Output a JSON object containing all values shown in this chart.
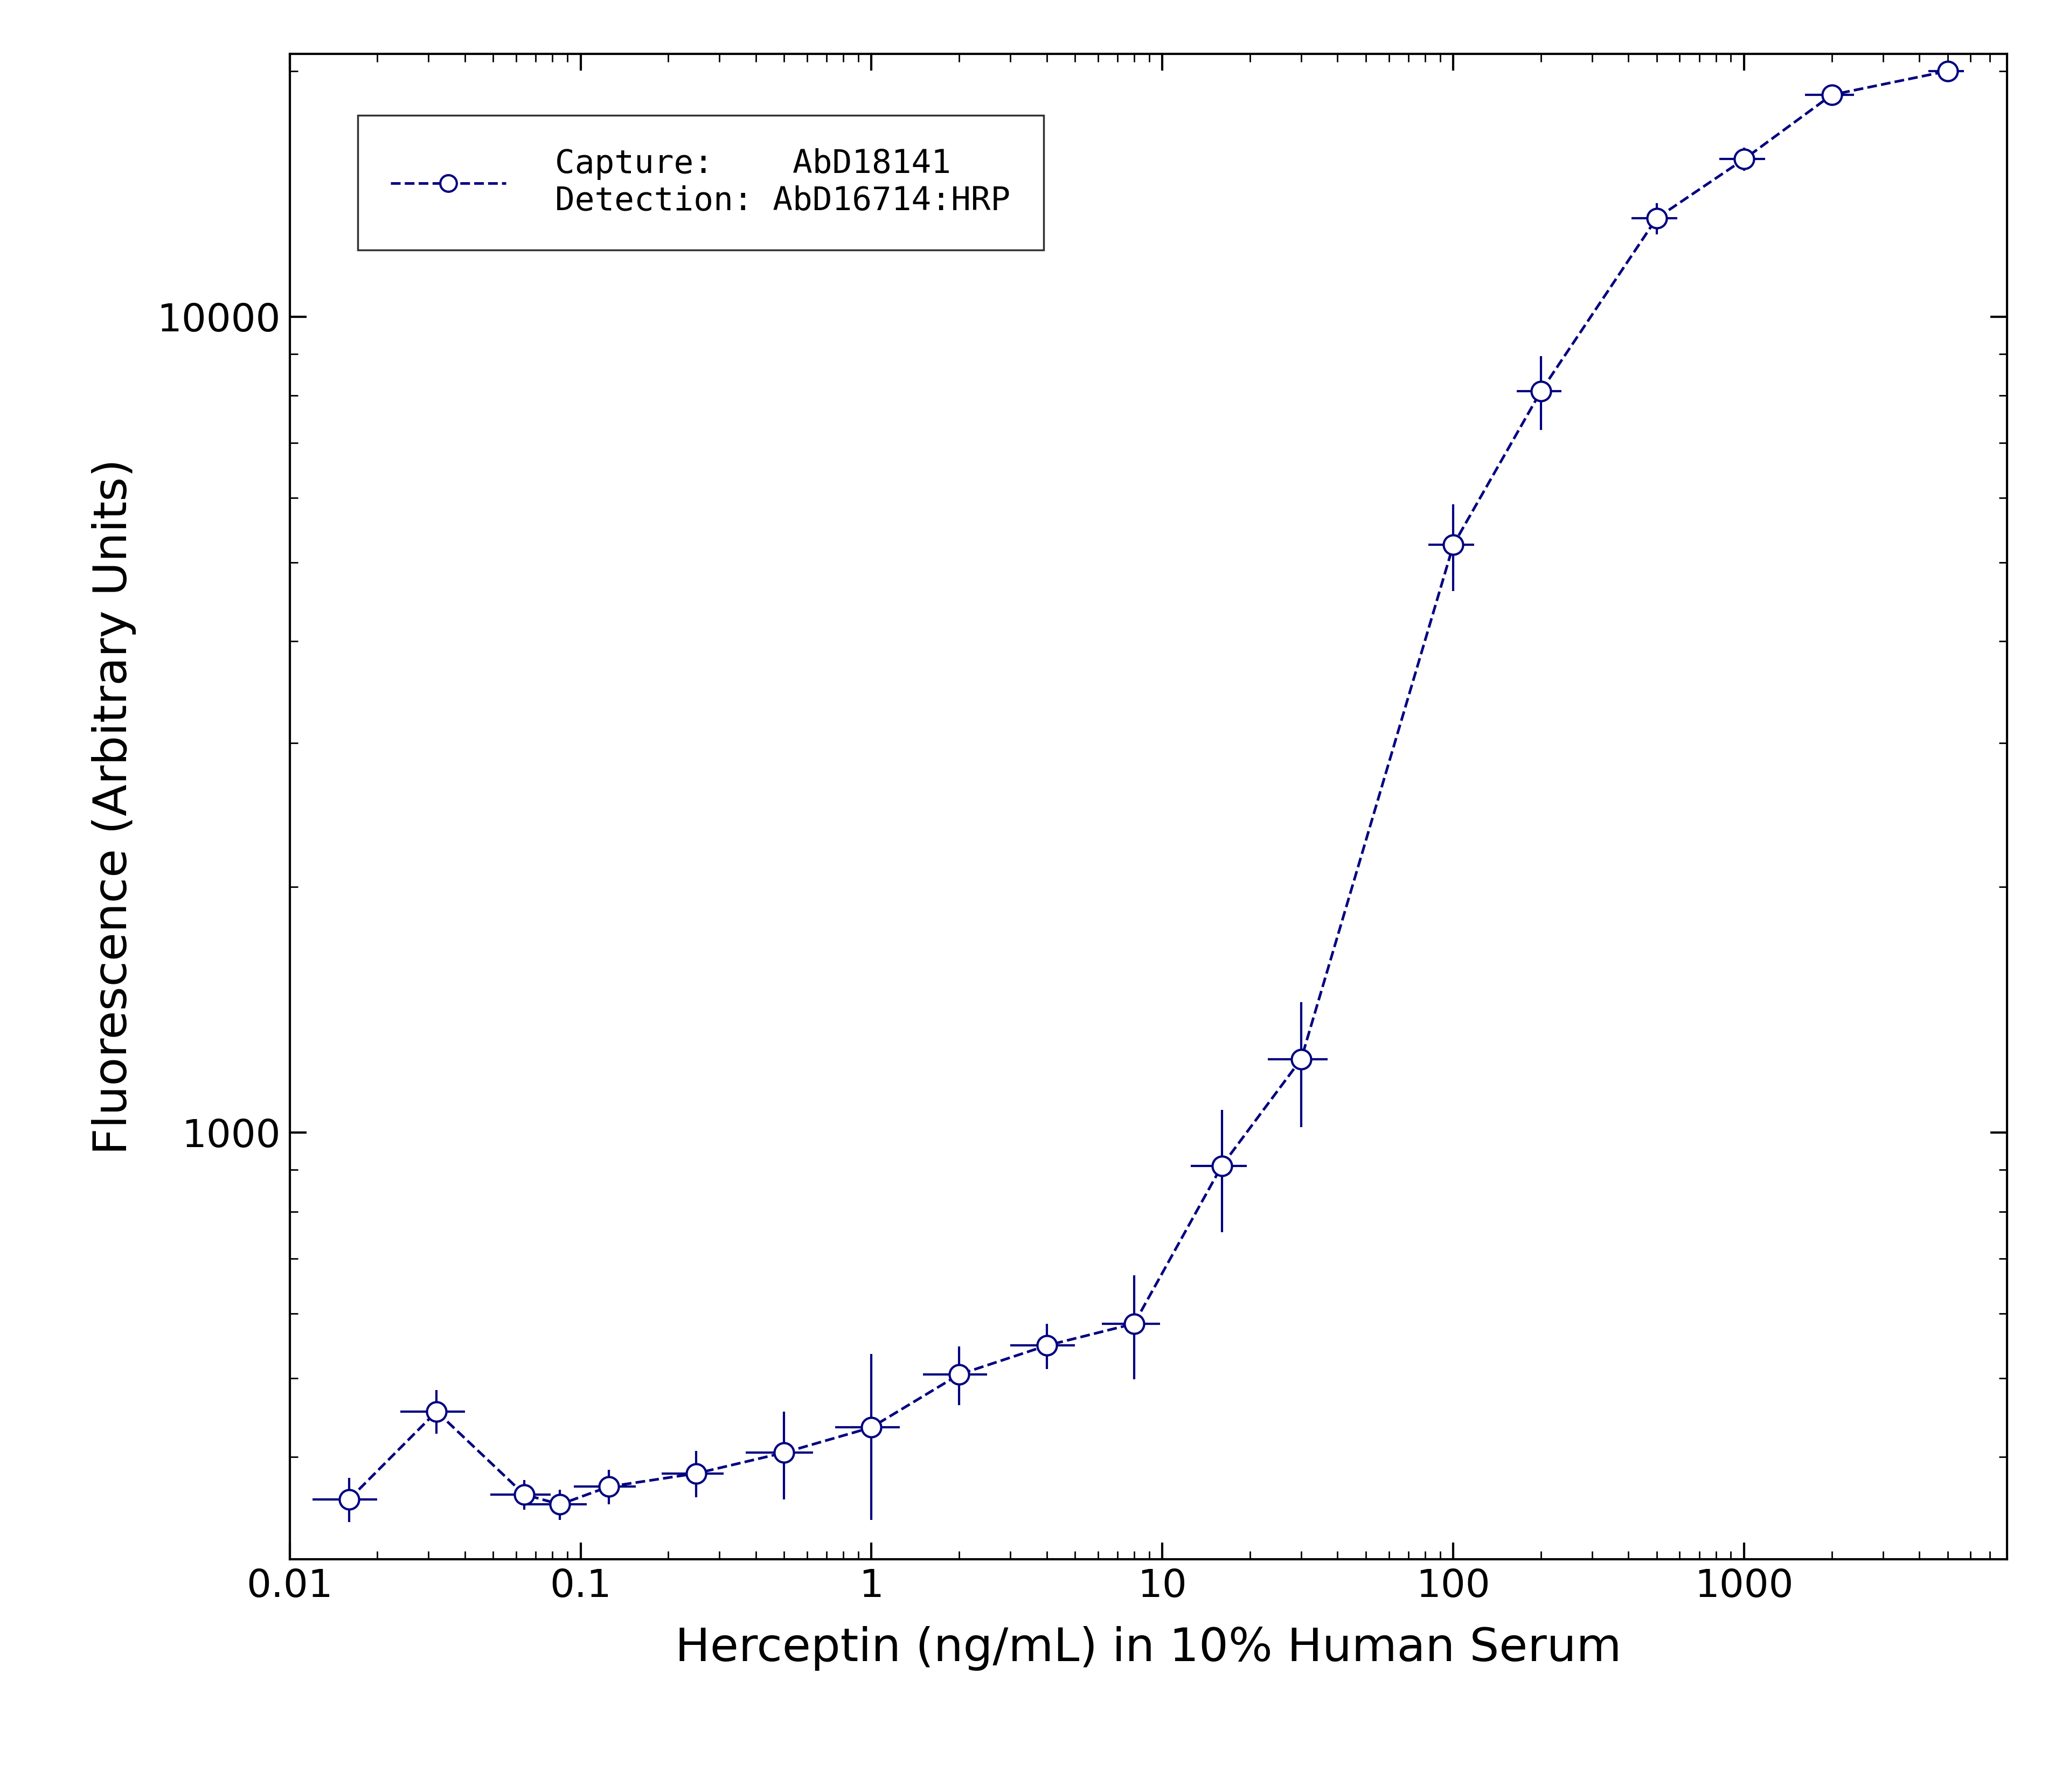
{
  "x": [
    0.016,
    0.032,
    0.064,
    0.085,
    0.125,
    0.25,
    0.5,
    1.0,
    2.0,
    4.0,
    8.0,
    16.0,
    30.0,
    100.0,
    200.0,
    500.0,
    1000.0,
    2000.0,
    5000.0
  ],
  "y": [
    355,
    455,
    360,
    350,
    368,
    382,
    405,
    435,
    505,
    548,
    583,
    910,
    1230,
    5250,
    8100,
    13200,
    15600,
    18700,
    20000
  ],
  "yerr_low": [
    22,
    28,
    15,
    15,
    18,
    25,
    50,
    100,
    42,
    35,
    85,
    155,
    215,
    640,
    840,
    580,
    510,
    370,
    170
  ],
  "yerr_high": [
    22,
    28,
    15,
    15,
    18,
    25,
    50,
    100,
    42,
    35,
    85,
    155,
    215,
    640,
    840,
    580,
    510,
    370,
    170
  ],
  "xerr": [
    0.004,
    0.008,
    0.015,
    0.02,
    0.03,
    0.06,
    0.13,
    0.25,
    0.5,
    1.0,
    1.8,
    3.5,
    7.0,
    18.0,
    35.0,
    90.0,
    180.0,
    380.0,
    700.0
  ],
  "color": "#000080",
  "linestyle": "--",
  "markerfacecolor": "#ffffff",
  "xlabel": "Herceptin (ng/mL) in 10% Human Serum",
  "ylabel": "Fluorescence (Arbitrary Units)",
  "legend_capture": "Capture:    AbD18141",
  "legend_detection": "Detection: AbD16714:HRP",
  "xlim_low": 0.01,
  "xlim_high": 8000,
  "ylim_low": 300,
  "ylim_high": 21000,
  "background_color": "#ffffff",
  "label_fontsize": 62,
  "tick_fontsize": 52,
  "legend_fontsize": 44,
  "markersize": 26,
  "linewidth": 3.5,
  "elinewidth": 3.0,
  "markeredgewidth": 3.0
}
